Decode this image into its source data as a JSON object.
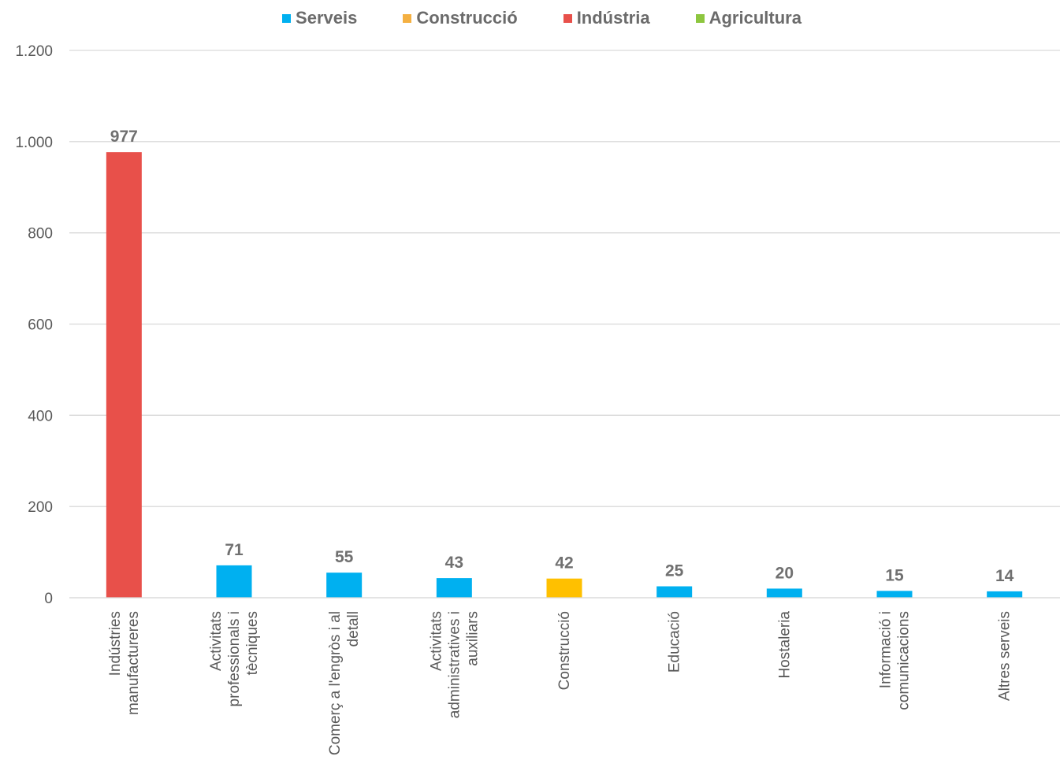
{
  "chart_data": {
    "type": "bar",
    "categories": [
      [
        "Indústries",
        "manufactureres"
      ],
      [
        "Activitats",
        "professionals i",
        "tècniques"
      ],
      [
        "Comerç a l'engròs i al",
        "detall"
      ],
      [
        "Activitats",
        "administratives i",
        "auxiliars"
      ],
      [
        "Construcció"
      ],
      [
        "Educació"
      ],
      [
        "Hostaleria"
      ],
      [
        "Informació i",
        "comunicacions"
      ],
      [
        "Altres serveis"
      ]
    ],
    "values": [
      977,
      71,
      55,
      43,
      42,
      25,
      20,
      15,
      14
    ],
    "value_labels": [
      "977",
      "71",
      "55",
      "43",
      "42",
      "25",
      "20",
      "15",
      "14"
    ],
    "sector": [
      "Indústria",
      "Serveis",
      "Serveis",
      "Serveis",
      "Construcció",
      "Serveis",
      "Serveis",
      "Serveis",
      "Serveis"
    ],
    "legend": [
      {
        "name": "Serveis",
        "color": "#00b0f0"
      },
      {
        "name": "Construcció",
        "color": "#f4b042"
      },
      {
        "name": "Indústria",
        "color": "#e8504a"
      },
      {
        "name": "Agricultura",
        "color": "#8dc63f"
      }
    ],
    "bar_colors": {
      "Serveis": "#00b0f0",
      "Construcció": "#ffc000",
      "Indústria": "#e8504a",
      "Agricultura": "#8dc63f"
    },
    "ylim": [
      0,
      1200
    ],
    "yticks": [
      0,
      200,
      400,
      600,
      800,
      1000,
      1200
    ],
    "ytick_labels": [
      "0",
      "200",
      "400",
      "600",
      "800",
      "1.000",
      "1.200"
    ],
    "grid": true,
    "legend_position": "top"
  }
}
